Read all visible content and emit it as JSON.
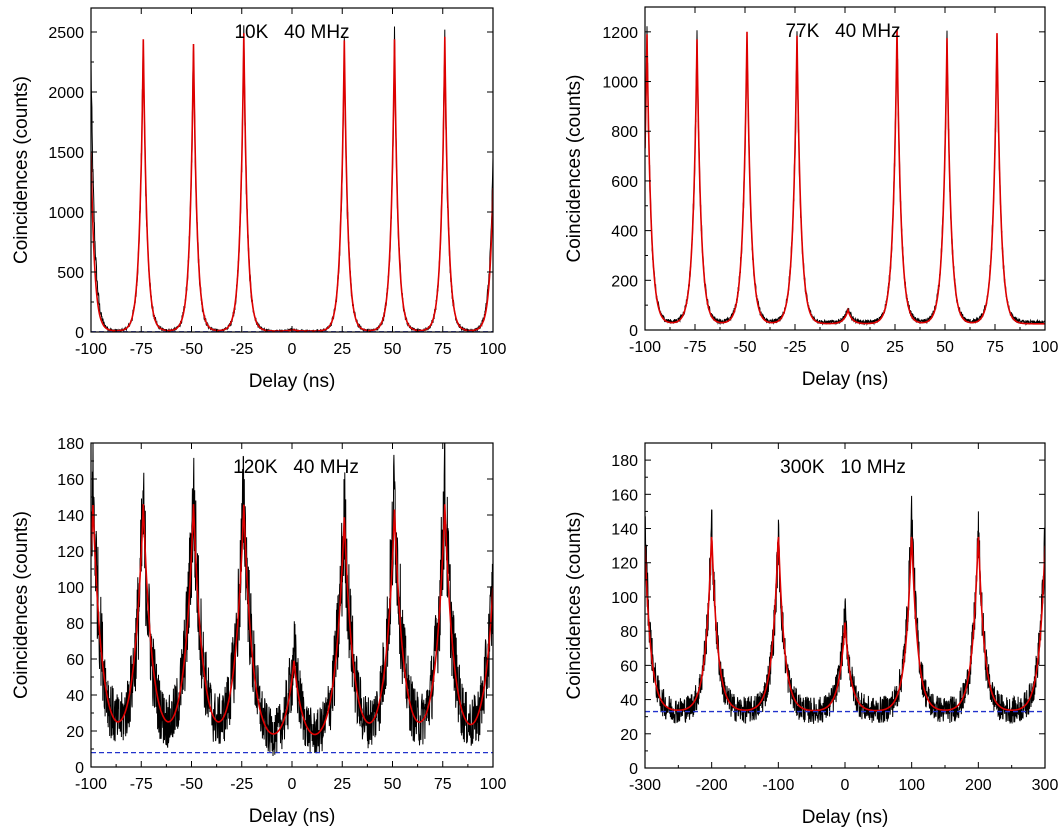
{
  "chart_data": [
    {
      "type": "line",
      "title": "10K   40 MHz",
      "xlabel": "Delay (ns)",
      "ylabel": "Coincidences (counts)",
      "xlim": [
        -100,
        100
      ],
      "ylim": [
        0,
        2700
      ],
      "xticks": [
        -100,
        -75,
        -50,
        -25,
        0,
        25,
        50,
        75,
        100
      ],
      "yticks": [
        0,
        500,
        1000,
        1500,
        2000,
        2500
      ],
      "series": [
        {
          "color": "#000000",
          "kind": "measured",
          "peaks": [
            [
              -100,
              2240
            ],
            [
              -74,
              2430
            ],
            [
              -49,
              2410
            ],
            [
              -24,
              2480
            ],
            [
              0.5,
              25
            ],
            [
              26,
              2420
            ],
            [
              51,
              2430
            ],
            [
              76,
              2450
            ],
            [
              100,
              1400
            ]
          ],
          "baseline": 8,
          "halfwidth": 1.8,
          "noise": 12
        },
        {
          "color": "#dd0000",
          "kind": "fit",
          "peaks": [
            [
              -100,
              1500
            ],
            [
              -74,
              2440
            ],
            [
              -49,
              2400
            ],
            [
              -24,
              2490
            ],
            [
              0.5,
              20
            ],
            [
              26,
              2430
            ],
            [
              51,
              2440
            ],
            [
              76,
              2460
            ],
            [
              100,
              1200
            ]
          ],
          "baseline": 8,
          "halfwidth": 1.8
        },
        {
          "color": "#2233cc",
          "kind": "dashed",
          "y": 2
        }
      ]
    },
    {
      "type": "line",
      "title": "77K   40 MHz",
      "xlabel": "Delay (ns)",
      "ylabel": "Coincidences (counts)",
      "xlim": [
        -100,
        100
      ],
      "ylim": [
        0,
        1300
      ],
      "xticks": [
        -100,
        -75,
        -50,
        -25,
        0,
        25,
        50,
        75,
        100
      ],
      "yticks": [
        0,
        200,
        400,
        600,
        800,
        1000,
        1200
      ],
      "series": [
        {
          "color": "#000000",
          "kind": "measured",
          "peaks": [
            [
              -99,
              1180
            ],
            [
              -74,
              1165
            ],
            [
              -49,
              1190
            ],
            [
              -24,
              1175
            ],
            [
              1.5,
              85
            ],
            [
              26,
              1200
            ],
            [
              51,
              1165
            ],
            [
              76,
              1185
            ]
          ],
          "baseline": 30,
          "halfwidth": 2.0,
          "noise": 14
        },
        {
          "color": "#dd0000",
          "kind": "fit",
          "peaks": [
            [
              -99,
              1190
            ],
            [
              -74,
              1170
            ],
            [
              -49,
              1200
            ],
            [
              -24,
              1185
            ],
            [
              1.5,
              80
            ],
            [
              26,
              1210
            ],
            [
              51,
              1175
            ],
            [
              76,
              1195
            ]
          ],
          "baseline": 25,
          "halfwidth": 2.0
        }
      ]
    },
    {
      "type": "line",
      "title": "120K   40 MHz",
      "xlabel": "Delay (ns)",
      "ylabel": "Coincidences (counts)",
      "xlim": [
        -100,
        100
      ],
      "ylim": [
        0,
        180
      ],
      "xticks": [
        -100,
        -75,
        -50,
        -25,
        0,
        25,
        50,
        75,
        100
      ],
      "yticks": [
        0,
        20,
        40,
        60,
        80,
        100,
        120,
        140,
        160,
        180
      ],
      "series": [
        {
          "color": "#000000",
          "kind": "measured",
          "peaks": [
            [
              -99,
              155
            ],
            [
              -74,
              140
            ],
            [
              -49,
              150
            ],
            [
              -24,
              150
            ],
            [
              1,
              62
            ],
            [
              26,
              140
            ],
            [
              51,
              152
            ],
            [
              76,
              155
            ],
            [
              100,
              100
            ]
          ],
          "baseline": 8,
          "halfwidth": 4.5,
          "noise": 14
        },
        {
          "color": "#dd0000",
          "kind": "fit",
          "peaks": [
            [
              -99,
              145
            ],
            [
              -74,
              145
            ],
            [
              -49,
              145
            ],
            [
              -24,
              145
            ],
            [
              1,
              58
            ],
            [
              26,
              138
            ],
            [
              51,
              142
            ],
            [
              76,
              145
            ],
            [
              100,
              100
            ]
          ],
          "baseline": 8,
          "halfwidth": 4.5
        },
        {
          "color": "#2233cc",
          "kind": "dashed",
          "y": 8
        }
      ]
    },
    {
      "type": "line",
      "title": "300K   10 MHz",
      "xlabel": "Delay (ns)",
      "ylabel": "Coincidences (counts)",
      "xlim": [
        -300,
        300
      ],
      "ylim": [
        0,
        190
      ],
      "xticks": [
        -300,
        -200,
        -100,
        0,
        100,
        200,
        300
      ],
      "yticks": [
        0,
        20,
        40,
        60,
        80,
        100,
        120,
        140,
        160,
        180
      ],
      "series": [
        {
          "color": "#000000",
          "kind": "measured",
          "peaks": [
            [
              -300,
              140
            ],
            [
              -200,
              140
            ],
            [
              -100,
              135
            ],
            [
              0,
              90
            ],
            [
              100,
              150
            ],
            [
              200,
              138
            ],
            [
              300,
              135
            ]
          ],
          "baseline": 33,
          "halfwidth": 9,
          "noise": 13
        },
        {
          "color": "#dd0000",
          "kind": "fit",
          "peaks": [
            [
              -300,
              130
            ],
            [
              -200,
              138
            ],
            [
              -100,
              138
            ],
            [
              0,
              85
            ],
            [
              100,
              138
            ],
            [
              200,
              138
            ],
            [
              300,
              130
            ]
          ],
          "baseline": 33,
          "halfwidth": 9
        },
        {
          "color": "#2233cc",
          "kind": "dashed",
          "y": 33
        }
      ]
    }
  ]
}
